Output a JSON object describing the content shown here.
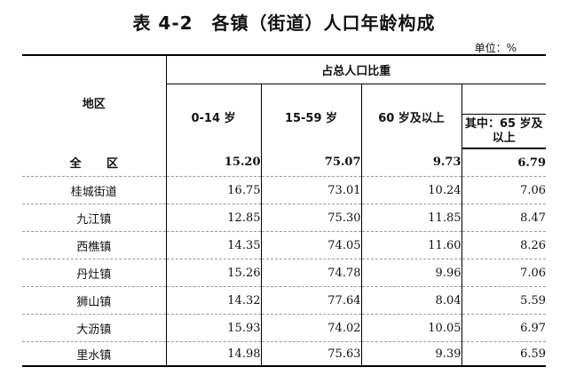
{
  "title": "表 4-2　各镇（街道）人口年龄构成",
  "unit": "单位：%",
  "table": {
    "region_header": "地区",
    "group_header": "占总人口比重",
    "columns": [
      "0-14 岁",
      "15-59 岁",
      "60 岁及以上",
      "其中：65 岁及以上"
    ],
    "rows": [
      {
        "region": "全 区",
        "values": [
          "15.20",
          "75.07",
          "9.73",
          "6.79"
        ]
      },
      {
        "region": "桂城街道",
        "values": [
          "16.75",
          "73.01",
          "10.24",
          "7.06"
        ]
      },
      {
        "region": "九江镇",
        "values": [
          "12.85",
          "75.30",
          "11.85",
          "8.47"
        ]
      },
      {
        "region": "西樵镇",
        "values": [
          "14.35",
          "74.05",
          "11.60",
          "8.26"
        ]
      },
      {
        "region": "丹灶镇",
        "values": [
          "15.26",
          "74.78",
          "9.96",
          "7.06"
        ]
      },
      {
        "region": "狮山镇",
        "values": [
          "14.32",
          "77.64",
          "8.04",
          "5.59"
        ]
      },
      {
        "region": "大沥镇",
        "values": [
          "15.93",
          "74.02",
          "10.05",
          "6.97"
        ]
      },
      {
        "region": "里水镇",
        "values": [
          "14.98",
          "75.63",
          "9.39",
          "6.59"
        ]
      }
    ]
  }
}
